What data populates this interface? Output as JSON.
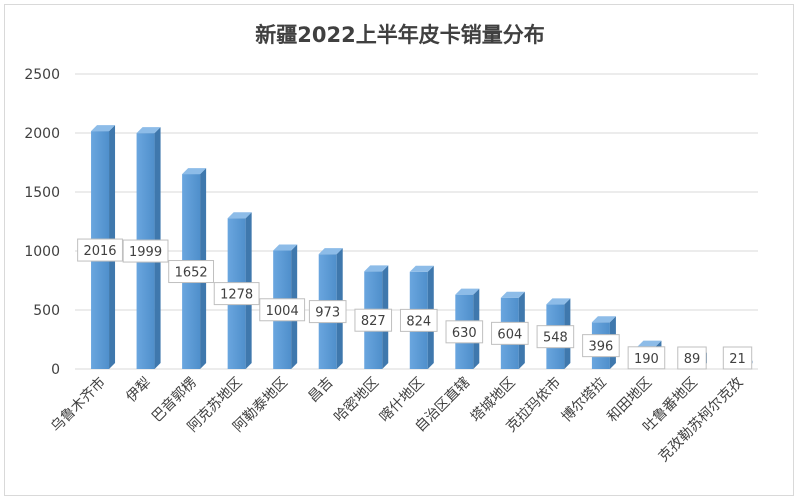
{
  "chart_data": {
    "type": "bar",
    "title": "新疆2022上半年皮卡销量分布",
    "categories": [
      "乌鲁木齐市",
      "伊犁",
      "巴音郭楞",
      "阿克苏地区",
      "阿勒泰地区",
      "昌吉",
      "哈密地区",
      "喀什地区",
      "自治区直辖",
      "塔城地区",
      "克拉玛依市",
      "博尔塔拉",
      "和田地区",
      "吐鲁番地区",
      "克孜勒苏柯尔克孜"
    ],
    "values": [
      2016,
      1999,
      1652,
      1278,
      1004,
      973,
      827,
      824,
      630,
      604,
      548,
      396,
      190,
      89,
      21
    ],
    "ylim": [
      0,
      2500
    ],
    "yticks": [
      0,
      500,
      1000,
      1500,
      2000,
      2500
    ],
    "grid": true,
    "legend": "none",
    "data_labels": true,
    "bar_color": "#5b9bd5"
  }
}
